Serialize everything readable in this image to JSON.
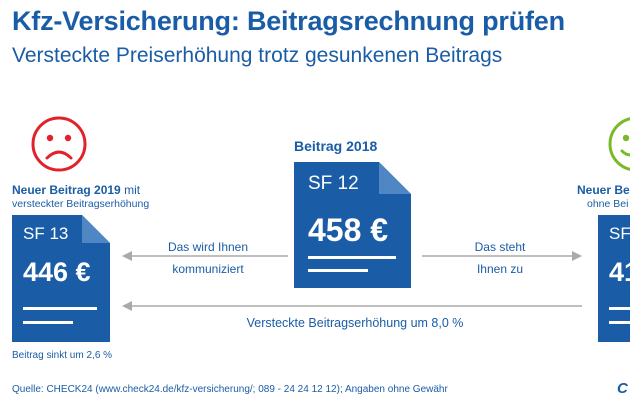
{
  "header": {
    "title": "Kfz-Versicherung: Beitragsrechnung prüfen",
    "subtitle": "Versteckte Preiserhöhung trotz gesunkenen Beitrags"
  },
  "left": {
    "heading_bold": "Neuer Beitrag 2019",
    "heading_suffix": " mit",
    "heading_line2": "versteckter Beitragserhöhung",
    "sf": "SF 13",
    "amount": "446 €",
    "note": "Beitrag sinkt um 2,6 %",
    "face": "sad-face-icon"
  },
  "center": {
    "heading": "Beitrag 2018",
    "sf": "SF 12",
    "amount": "458 €"
  },
  "right": {
    "heading_bold": "Neuer Be",
    "heading_line2": "ohne Bei",
    "sf": "SF",
    "amount": "41",
    "face": "happy-face-icon"
  },
  "arrows": {
    "left_line1": "Das wird Ihnen",
    "left_line2": "kommuniziert",
    "right_line1": "Das steht",
    "right_line2": "Ihnen zu",
    "bottom": "Versteckte Beitragserhöhung um 8,0 %"
  },
  "footer": {
    "source": "Quelle: CHECK24 (www.check24.de/kfz-versicherung/; 089 - 24 24 12 12); Angaben ohne Gewähr",
    "logo": "C"
  },
  "colors": {
    "blue": "#1a5da6",
    "red": "#e2222b",
    "green": "#7ab929",
    "gray": "#aaaaaa"
  }
}
